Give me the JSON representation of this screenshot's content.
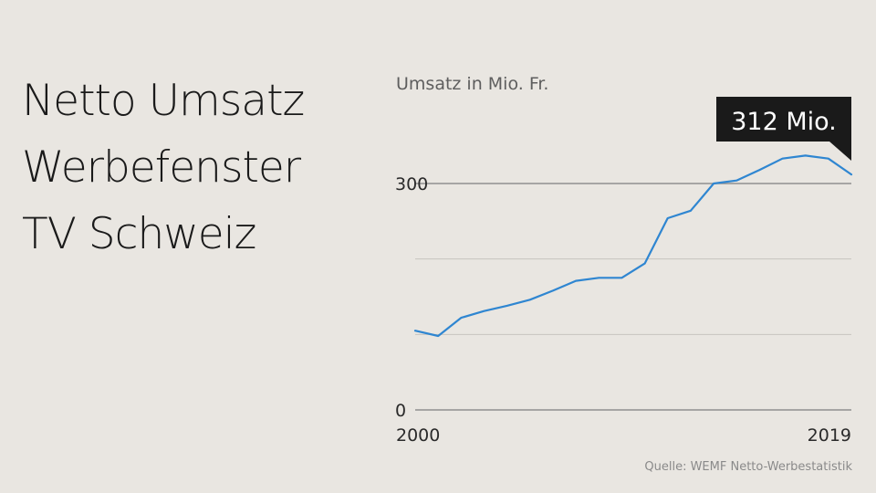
{
  "title_lines": [
    "Netto Umsatz",
    "Werbefenster",
    "TV Schweiz"
  ],
  "source": "Quelle: WEMF Netto-Werbestatistik",
  "chart_data": {
    "type": "line",
    "ylabel": "Umsatz in Mio. Fr.",
    "x": [
      2000,
      2001,
      2002,
      2003,
      2004,
      2005,
      2006,
      2007,
      2008,
      2009,
      2010,
      2011,
      2012,
      2013,
      2014,
      2015,
      2016,
      2017,
      2018,
      2019
    ],
    "series": [
      {
        "values": [
          105,
          98,
          122,
          131,
          138,
          146,
          158,
          171,
          175,
          175,
          194,
          254,
          264,
          300,
          304,
          318,
          333,
          337,
          333,
          312
        ],
        "color": "#2f86d1"
      }
    ],
    "xlim": [
      2000,
      2019
    ],
    "ylim": [
      0,
      300
    ],
    "y_tick_labels": [
      {
        "value": 0,
        "label": "0"
      },
      {
        "value": 300,
        "label": "300"
      }
    ],
    "gridlines": [
      0,
      100,
      200,
      300
    ],
    "x_tick_labels": [
      {
        "value": 2000,
        "label": "2000"
      },
      {
        "value": 2019,
        "label": "2019"
      }
    ],
    "annotation": {
      "x": 2019,
      "label": "312 Mio."
    },
    "grid": true
  }
}
